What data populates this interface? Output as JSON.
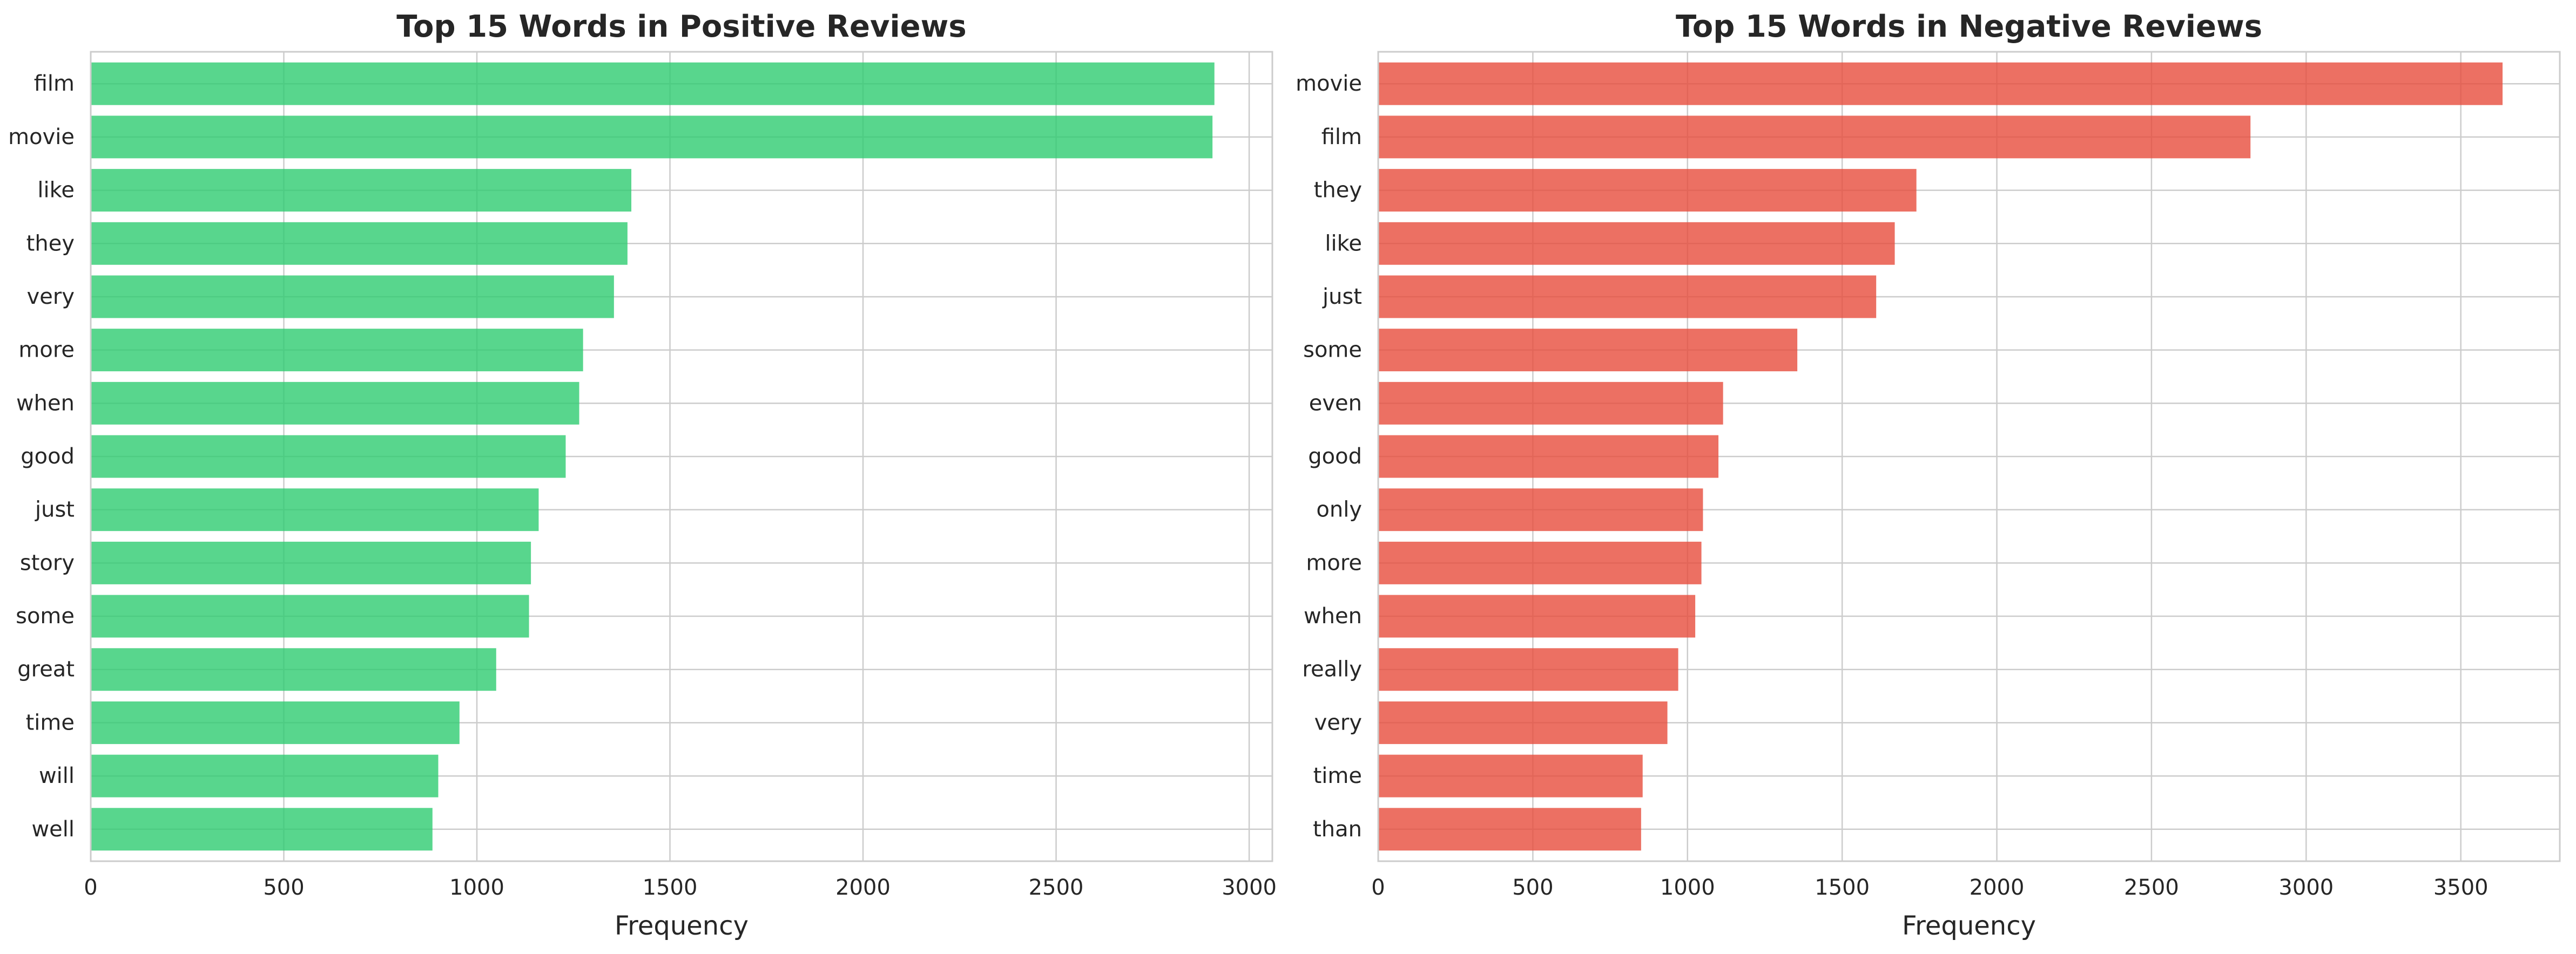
{
  "colors": {
    "positive_bar": "#2ecc71",
    "negative_bar": "#e74c3c",
    "grid": "#cccccc",
    "text": "#262626",
    "axes_edge": "#cccccc"
  },
  "chart_data": [
    {
      "type": "bar",
      "orientation": "horizontal",
      "title": "Top 15 Words in Positive Reviews",
      "xlabel": "Frequency",
      "ylabel": "",
      "xlim": [
        0,
        3060
      ],
      "xticks": [
        0,
        500,
        1000,
        1500,
        2000,
        2500,
        3000
      ],
      "grid": true,
      "legend": "none",
      "categories": [
        "film",
        "movie",
        "like",
        "they",
        "very",
        "more",
        "when",
        "good",
        "just",
        "story",
        "some",
        "great",
        "time",
        "will",
        "well"
      ],
      "values": [
        2910,
        2905,
        1400,
        1390,
        1355,
        1275,
        1265,
        1230,
        1160,
        1140,
        1135,
        1050,
        955,
        900,
        885
      ]
    },
    {
      "type": "bar",
      "orientation": "horizontal",
      "title": "Top 15 Words in Negative Reviews",
      "xlabel": "Frequency",
      "ylabel": "",
      "xlim": [
        0,
        3820
      ],
      "xticks": [
        0,
        500,
        1000,
        1500,
        2000,
        2500,
        3000,
        3500
      ],
      "grid": true,
      "legend": "none",
      "categories": [
        "movie",
        "film",
        "they",
        "like",
        "just",
        "some",
        "even",
        "good",
        "only",
        "more",
        "when",
        "really",
        "very",
        "time",
        "than"
      ],
      "values": [
        3635,
        2820,
        1740,
        1670,
        1610,
        1355,
        1115,
        1100,
        1050,
        1045,
        1025,
        970,
        935,
        855,
        850
      ]
    }
  ]
}
